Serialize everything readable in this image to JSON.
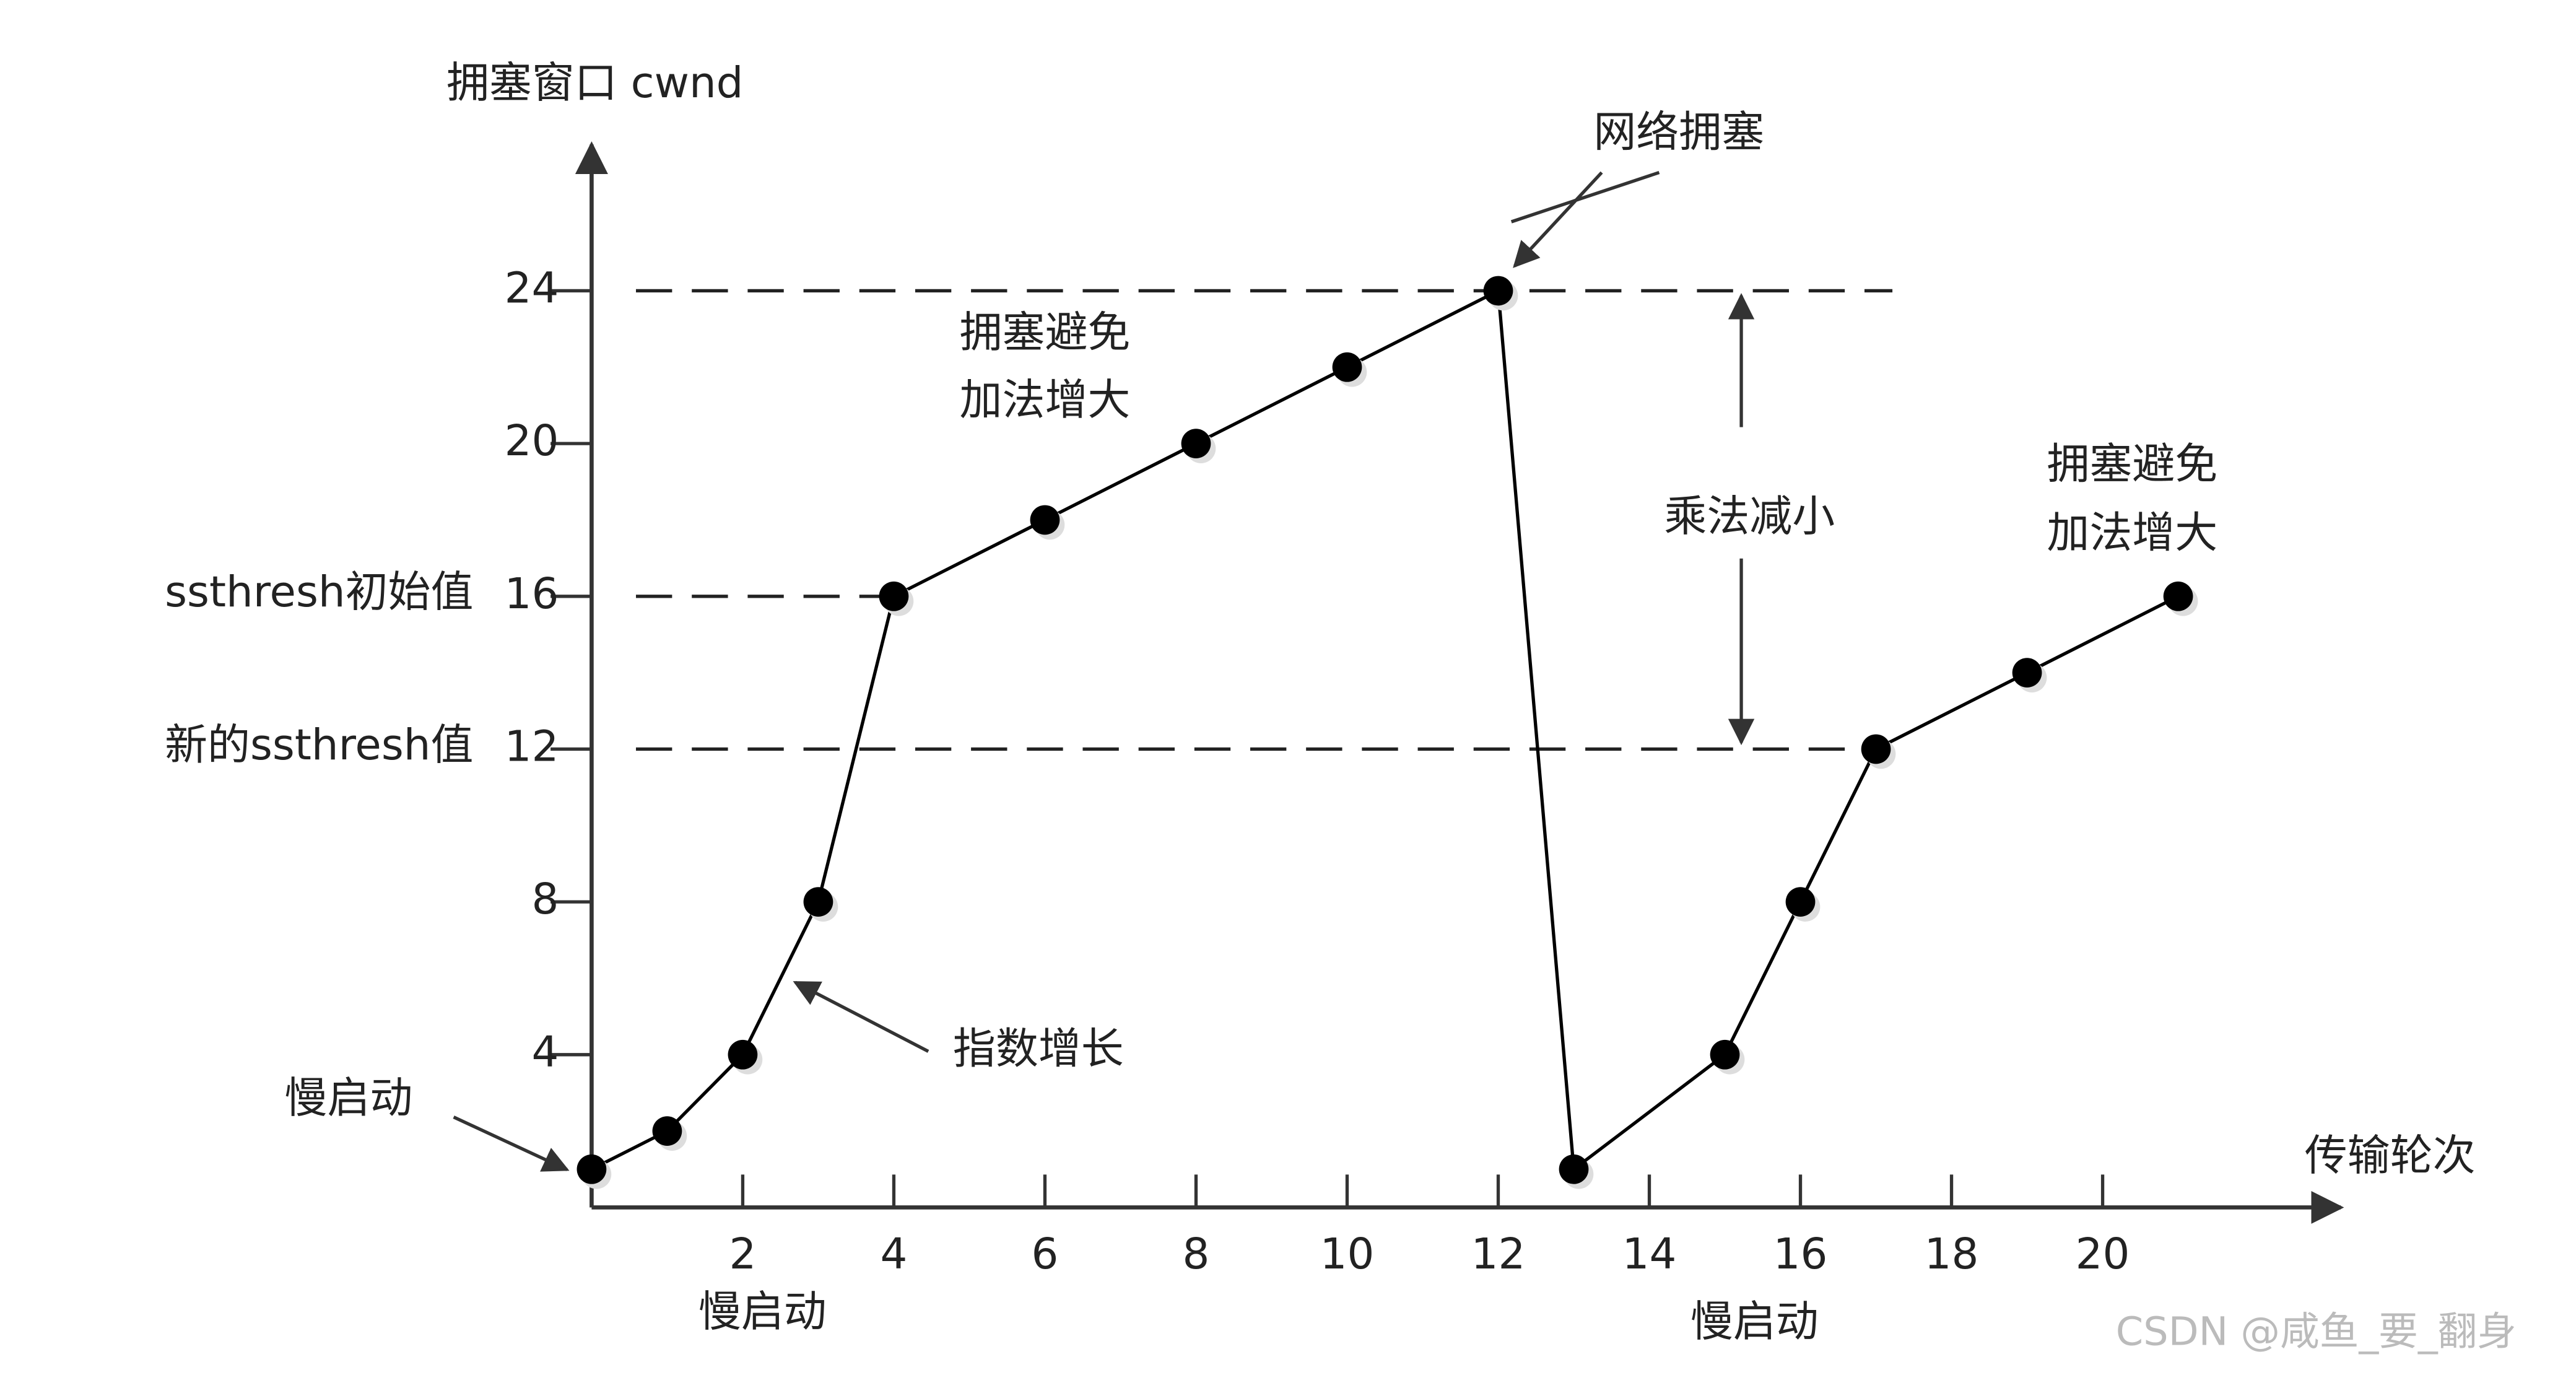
{
  "chart_data": {
    "type": "line",
    "y_label": "拥塞窗口 cwnd",
    "x_label": "传输轮次",
    "x": [
      0,
      1,
      2,
      3,
      4,
      6,
      8,
      10,
      12,
      13,
      15,
      16,
      17,
      19,
      21
    ],
    "series": [
      {
        "color": "#000000",
        "values": [
          1,
          2,
          4,
          8,
          16,
          18,
          20,
          22,
          24,
          1,
          4,
          8,
          12,
          14,
          16
        ]
      }
    ],
    "xlim": [
      0,
      23
    ],
    "ylim": [
      0,
      28
    ],
    "xticks": [
      2,
      4,
      6,
      8,
      10,
      12,
      14,
      16,
      18,
      20
    ],
    "yticks": [
      4,
      8,
      12,
      16,
      20,
      24
    ],
    "hlines": [
      24,
      16,
      12
    ],
    "annotations": [
      "网络拥塞",
      "拥塞避免",
      "加法增大",
      "乘法减小",
      "拥塞避免",
      "加法增大",
      "指数增长",
      "慢启动",
      "慢启动",
      "慢启动",
      "ssthresh初始值",
      "新的ssthresh值"
    ],
    "watermark": "CSDN @咸鱼_要_翻身"
  }
}
